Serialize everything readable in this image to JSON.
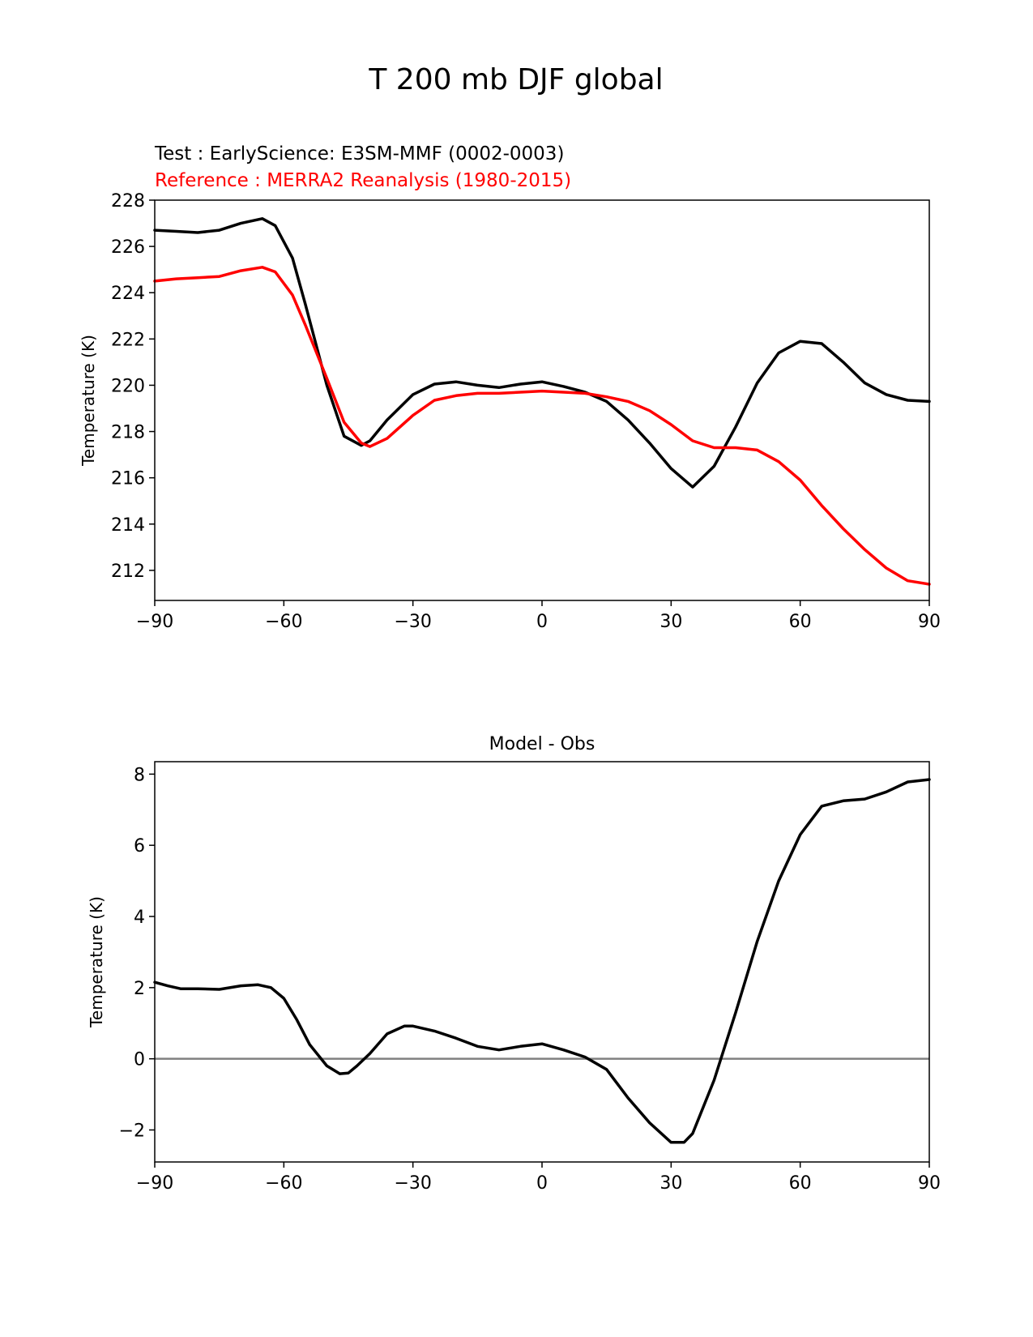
{
  "figure": {
    "title": "T 200 mb DJF global"
  },
  "chart_data": [
    {
      "type": "line",
      "title": "",
      "legend": {
        "test_label": "Test : EarlyScience: E3SM-MMF (0002-0003)",
        "reference_label": "Reference : MERRA2 Reanalysis (1980-2015)"
      },
      "xlabel": "",
      "ylabel": "Temperature (K)",
      "xlim": [
        -90,
        90
      ],
      "ylim": [
        210.7,
        228
      ],
      "xticks": [
        -90,
        -60,
        -30,
        0,
        30,
        60,
        90
      ],
      "xtick_labels": [
        "−90",
        "−60",
        "−30",
        "0",
        "30",
        "60",
        "90"
      ],
      "yticks": [
        212,
        214,
        216,
        218,
        220,
        222,
        224,
        226,
        228
      ],
      "ytick_labels": [
        "212",
        "214",
        "216",
        "218",
        "220",
        "222",
        "224",
        "226",
        "228"
      ],
      "series": [
        {
          "name": "Test",
          "color": "#000000",
          "x": [
            -90,
            -85,
            -80,
            -75,
            -70,
            -65,
            -62,
            -58,
            -55,
            -50,
            -46,
            -42,
            -40,
            -36,
            -30,
            -25,
            -20,
            -15,
            -10,
            -5,
            0,
            5,
            10,
            15,
            20,
            25,
            30,
            35,
            40,
            45,
            50,
            55,
            60,
            65,
            70,
            75,
            80,
            85,
            90
          ],
          "y": [
            226.7,
            226.65,
            226.6,
            226.7,
            227.0,
            227.2,
            226.9,
            225.5,
            223.5,
            220.0,
            217.8,
            217.4,
            217.6,
            218.5,
            219.6,
            220.05,
            220.15,
            220.0,
            219.9,
            220.05,
            220.15,
            219.95,
            219.7,
            219.3,
            218.5,
            217.5,
            216.4,
            215.6,
            216.5,
            218.2,
            220.1,
            221.4,
            221.9,
            221.8,
            221.0,
            220.1,
            219.6,
            219.35,
            219.3
          ]
        },
        {
          "name": "Reference",
          "color": "#ff0000",
          "x": [
            -90,
            -85,
            -80,
            -75,
            -70,
            -65,
            -62,
            -58,
            -55,
            -50,
            -46,
            -42,
            -40,
            -36,
            -30,
            -25,
            -20,
            -15,
            -10,
            -5,
            0,
            5,
            10,
            15,
            20,
            25,
            30,
            35,
            40,
            45,
            50,
            55,
            60,
            65,
            70,
            75,
            80,
            85,
            90
          ],
          "y": [
            224.5,
            224.6,
            224.65,
            224.7,
            224.95,
            225.1,
            224.9,
            223.9,
            222.6,
            220.3,
            218.4,
            217.5,
            217.35,
            217.7,
            218.7,
            219.35,
            219.55,
            219.65,
            219.65,
            219.7,
            219.75,
            219.7,
            219.65,
            219.5,
            219.3,
            218.9,
            218.3,
            217.6,
            217.3,
            217.3,
            217.2,
            216.7,
            215.9,
            214.8,
            213.8,
            212.9,
            212.1,
            211.55,
            211.4
          ]
        }
      ]
    },
    {
      "type": "line",
      "title": "Model - Obs",
      "xlabel": "",
      "ylabel": "Temperature (K)",
      "xlim": [
        -90,
        90
      ],
      "ylim": [
        -2.9,
        8.35
      ],
      "xticks": [
        -90,
        -60,
        -30,
        0,
        30,
        60,
        90
      ],
      "xtick_labels": [
        "−90",
        "−60",
        "−30",
        "0",
        "30",
        "60",
        "90"
      ],
      "yticks": [
        -2,
        0,
        2,
        4,
        6,
        8
      ],
      "ytick_labels": [
        "−2",
        "0",
        "2",
        "4",
        "6",
        "8"
      ],
      "zero_line": {
        "y": 0,
        "color": "#808080"
      },
      "series": [
        {
          "name": "Model - Obs",
          "color": "#000000",
          "x": [
            -90,
            -87,
            -84,
            -80,
            -75,
            -70,
            -66,
            -63,
            -60,
            -57,
            -54,
            -50,
            -47,
            -45,
            -43,
            -40,
            -36,
            -32,
            -30,
            -25,
            -20,
            -15,
            -10,
            -5,
            0,
            5,
            10,
            15,
            20,
            25,
            30,
            33,
            35,
            40,
            45,
            50,
            55,
            60,
            65,
            70,
            75,
            80,
            85,
            90
          ],
          "y": [
            2.15,
            2.05,
            1.97,
            1.97,
            1.95,
            2.05,
            2.08,
            2.0,
            1.7,
            1.1,
            0.4,
            -0.2,
            -0.42,
            -0.4,
            -0.2,
            0.15,
            0.7,
            0.92,
            0.92,
            0.78,
            0.58,
            0.35,
            0.25,
            0.35,
            0.42,
            0.25,
            0.05,
            -0.3,
            -1.1,
            -1.8,
            -2.35,
            -2.35,
            -2.1,
            -0.6,
            1.3,
            3.3,
            5.0,
            6.3,
            7.1,
            7.25,
            7.3,
            7.5,
            7.78,
            7.85
          ]
        }
      ]
    }
  ]
}
